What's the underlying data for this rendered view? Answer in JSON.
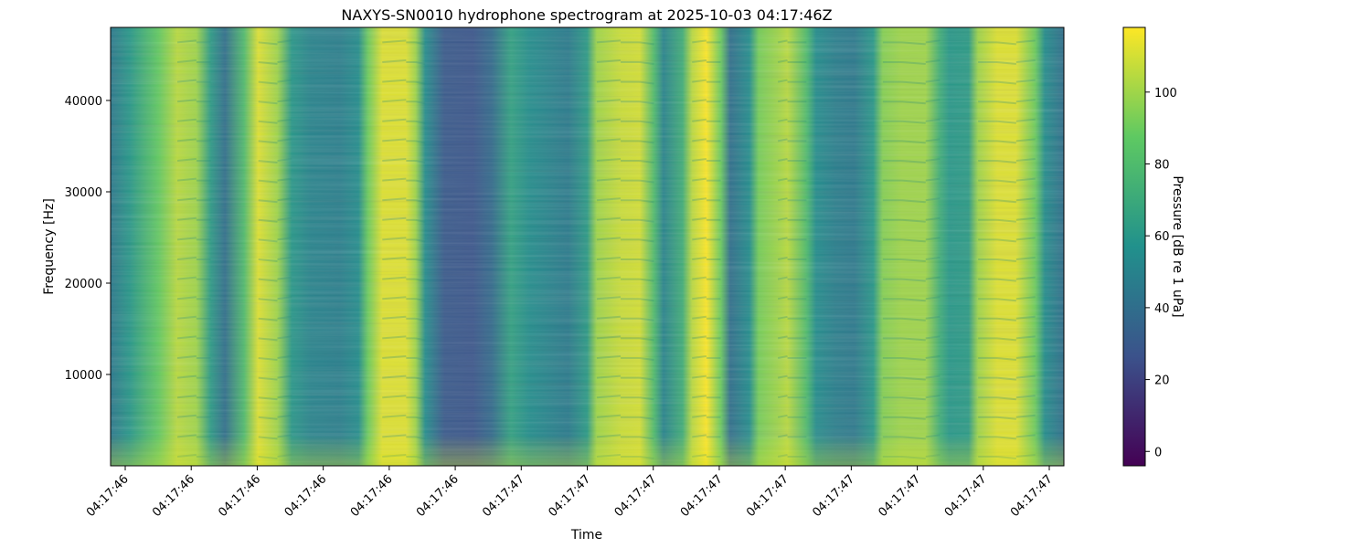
{
  "chart_data": {
    "type": "heatmap",
    "title": "NAXYS-SN0010 hydrophone spectrogram at 2025-10-03 04:17:46Z",
    "xlabel": "Time",
    "ylabel": "Frequency [Hz]",
    "colorbar_label": "Pressure [dB re 1 uPa]",
    "colormap": "viridis",
    "ylim": [
      0,
      48000
    ],
    "y_ticks": [
      10000,
      20000,
      30000,
      40000
    ],
    "x_ticks": [
      "04:17:46",
      "04:17:46",
      "04:17:46",
      "04:17:46",
      "04:17:46",
      "04:17:46",
      "04:17:47",
      "04:17:47",
      "04:17:47",
      "04:17:47",
      "04:17:47",
      "04:17:47",
      "04:17:47",
      "04:17:47",
      "04:17:47"
    ],
    "color_range": [
      -4,
      118
    ],
    "colorbar_ticks": [
      0,
      20,
      40,
      60,
      80,
      100
    ],
    "time_columns_intensity_dB": [
      [
        0.0,
        45
      ],
      [
        0.02,
        60
      ],
      [
        0.05,
        88
      ],
      [
        0.07,
        105
      ],
      [
        0.09,
        100
      ],
      [
        0.105,
        62
      ],
      [
        0.12,
        40
      ],
      [
        0.14,
        80
      ],
      [
        0.155,
        112
      ],
      [
        0.175,
        100
      ],
      [
        0.19,
        60
      ],
      [
        0.21,
        50
      ],
      [
        0.24,
        48
      ],
      [
        0.26,
        55
      ],
      [
        0.27,
        90
      ],
      [
        0.285,
        112
      ],
      [
        0.31,
        112
      ],
      [
        0.32,
        100
      ],
      [
        0.33,
        55
      ],
      [
        0.35,
        30
      ],
      [
        0.38,
        28
      ],
      [
        0.4,
        38
      ],
      [
        0.42,
        65
      ],
      [
        0.44,
        55
      ],
      [
        0.47,
        48
      ],
      [
        0.48,
        46
      ],
      [
        0.5,
        62
      ],
      [
        0.51,
        100
      ],
      [
        0.535,
        108
      ],
      [
        0.555,
        110
      ],
      [
        0.57,
        80
      ],
      [
        0.58,
        50
      ],
      [
        0.6,
        72
      ],
      [
        0.61,
        105
      ],
      [
        0.625,
        118
      ],
      [
        0.64,
        90
      ],
      [
        0.65,
        40
      ],
      [
        0.67,
        55
      ],
      [
        0.68,
        92
      ],
      [
        0.7,
        100
      ],
      [
        0.71,
        105
      ],
      [
        0.73,
        80
      ],
      [
        0.74,
        55
      ],
      [
        0.76,
        48
      ],
      [
        0.78,
        45
      ],
      [
        0.8,
        60
      ],
      [
        0.81,
        95
      ],
      [
        0.83,
        100
      ],
      [
        0.855,
        100
      ],
      [
        0.87,
        72
      ],
      [
        0.88,
        60
      ],
      [
        0.9,
        62
      ],
      [
        0.91,
        100
      ],
      [
        0.93,
        112
      ],
      [
        0.95,
        112
      ],
      [
        0.97,
        90
      ],
      [
        0.98,
        55
      ],
      [
        1.0,
        40
      ]
    ]
  }
}
